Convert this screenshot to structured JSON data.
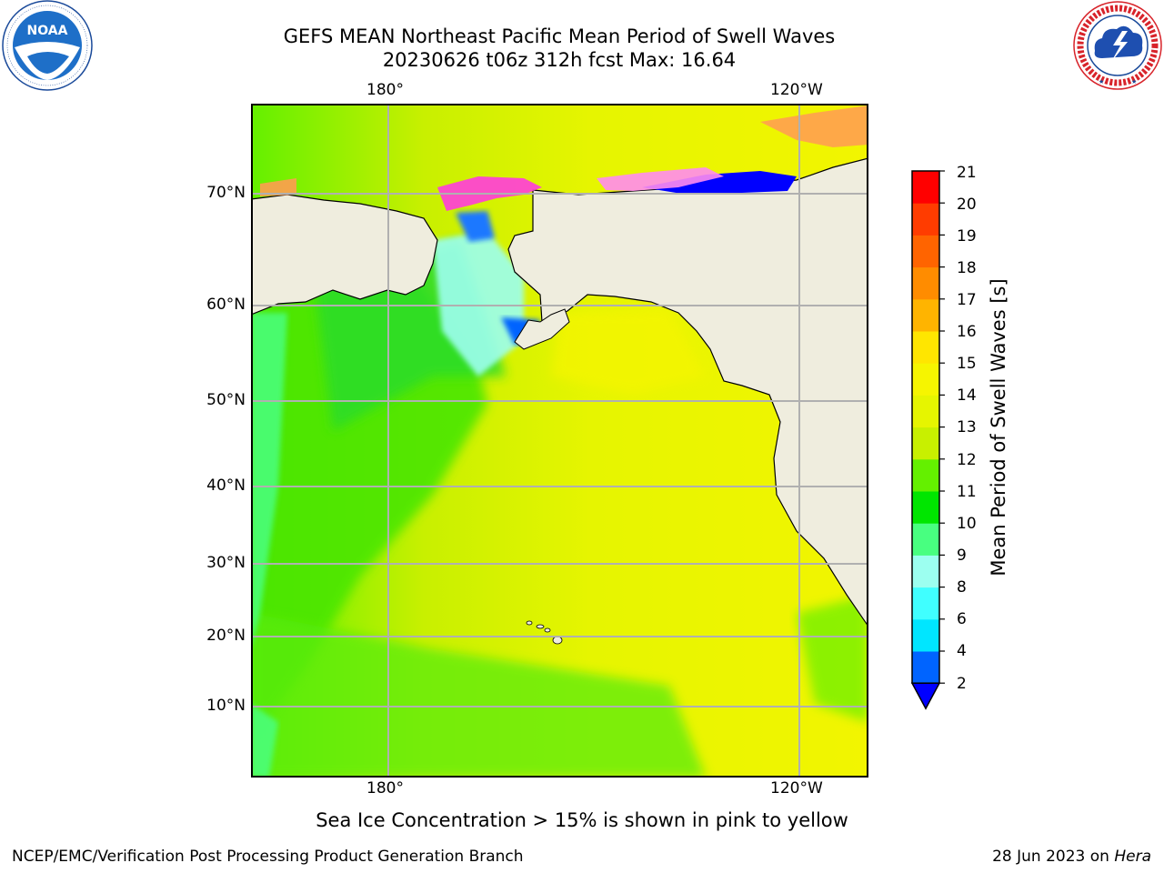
{
  "title": {
    "line1": "GEFS MEAN Northeast Pacific Mean Period of Swell Waves",
    "line2": "20230626 t06z 312h fcst   Max: 16.64"
  },
  "map": {
    "lon_labels_top": [
      "180°",
      "120°W"
    ],
    "lon_labels_bottom": [
      "180°",
      "120°W"
    ],
    "lat_labels": [
      "70°N",
      "60°N",
      "50°N",
      "40°N",
      "30°N",
      "20°N",
      "10°N"
    ],
    "land_color": "#efedde",
    "grid_color": "#b0b0b0",
    "dominant_field_color": "#e6f500"
  },
  "colorbar": {
    "label": "Mean Period of Swell Waves [s]",
    "ticks": [
      "21",
      "20",
      "19",
      "18",
      "17",
      "16",
      "15",
      "14",
      "13",
      "12",
      "11",
      "10",
      "9",
      "8",
      "6",
      "4",
      "2"
    ],
    "colors_bottom_to_top": [
      "#0064ff",
      "#00e6ff",
      "#40ffff",
      "#9cfff0",
      "#48ff80",
      "#00e600",
      "#64f000",
      "#c8f000",
      "#e6f500",
      "#f6f500",
      "#ffe600",
      "#ffb400",
      "#ff8c00",
      "#ff6400",
      "#ff3c00",
      "#ff0000"
    ],
    "under_color": "#0000ff"
  },
  "footer": {
    "note": "Sea Ice Concentration > 15% is shown in pink to yellow",
    "credit": "NCEP/EMC/Verification Post Processing Product Generation Branch",
    "date": "28 Jun 2023 on",
    "host": "Hera"
  },
  "logos": {
    "left": "NOAA",
    "left_ring_text": "NATIONAL OCEANIC AND ATMOSPHERIC ADMINISTRATION · U.S. DEPARTMENT OF COMMERCE",
    "right_ring_text": "NATIONAL WEATHER SERVICE"
  }
}
